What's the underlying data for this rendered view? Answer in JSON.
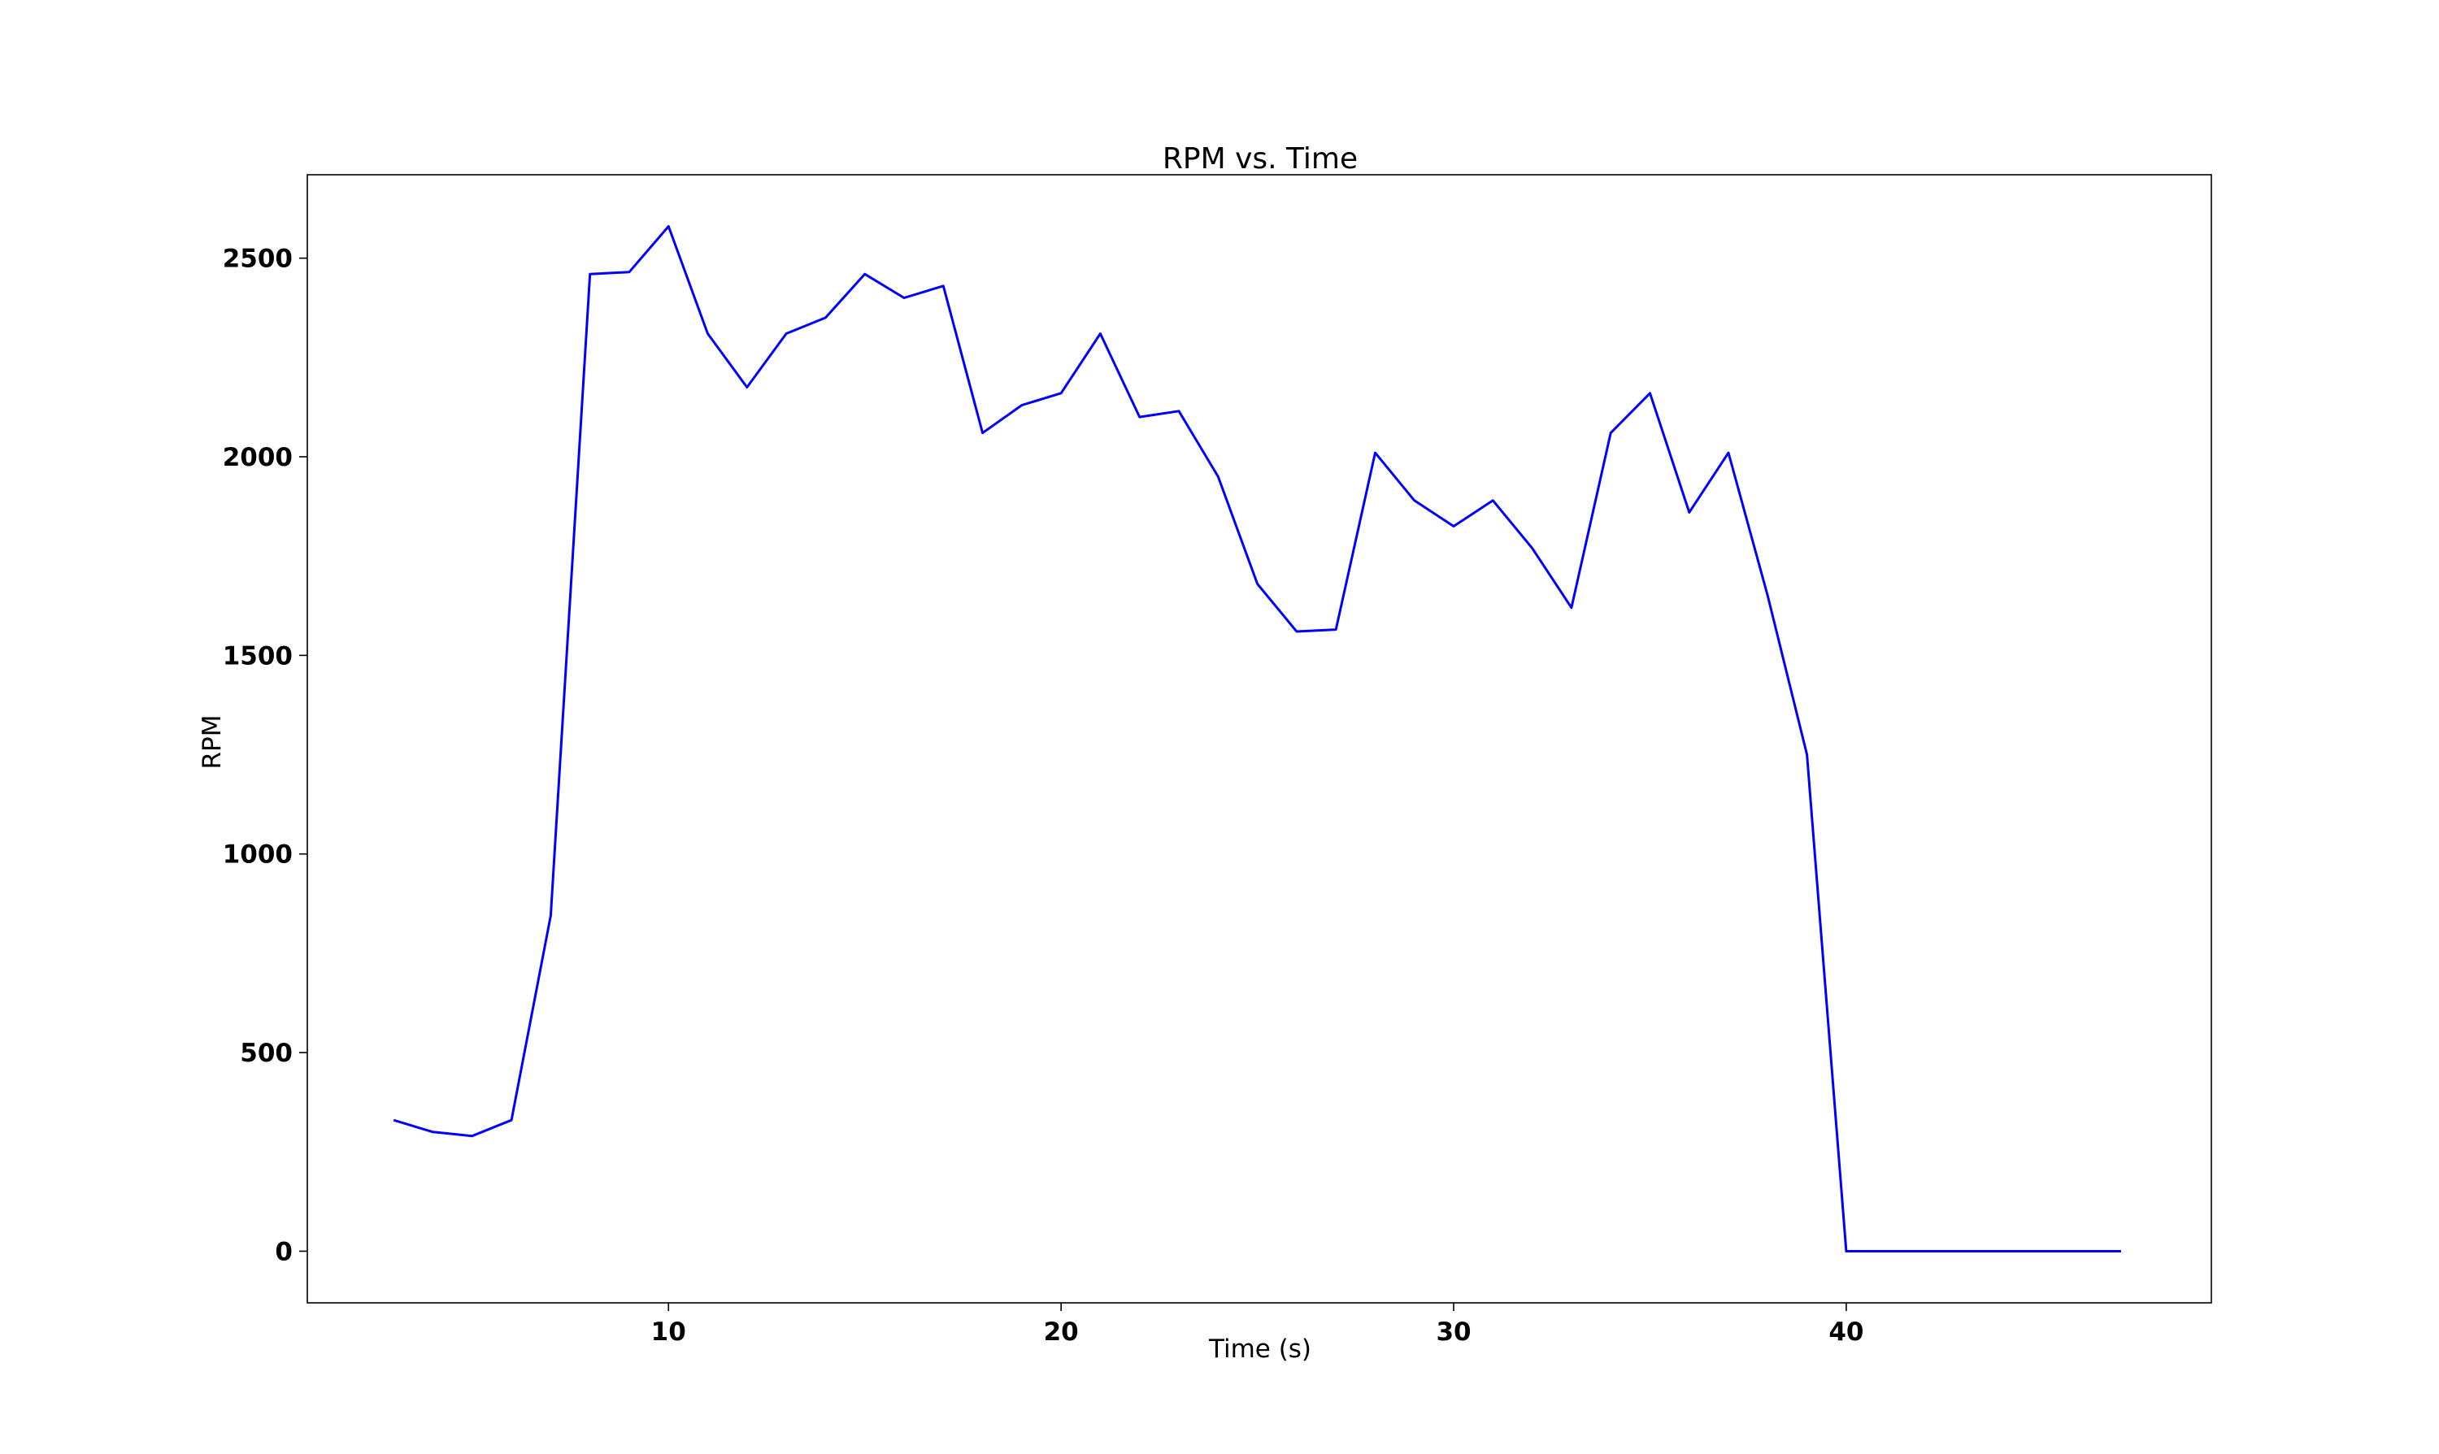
{
  "chart_data": {
    "type": "line",
    "title": "RPM vs. Time",
    "xlabel": "Time (s)",
    "ylabel": "RPM",
    "xlim": [
      0.8,
      49.3
    ],
    "ylim": [
      -130,
      2710
    ],
    "xticks": [
      10,
      20,
      30,
      40
    ],
    "yticks": [
      0,
      500,
      1000,
      1500,
      2000,
      2500
    ],
    "grid": false,
    "color": "#0000ff",
    "series": [
      {
        "x": [
          3,
          4,
          5,
          6,
          7,
          8,
          9,
          10,
          11,
          12,
          13,
          14,
          15,
          16,
          17,
          18,
          19,
          20,
          21,
          22,
          23,
          24,
          25,
          26,
          27,
          28,
          29,
          30,
          31,
          32,
          33,
          34,
          35,
          36,
          37,
          38,
          39,
          40,
          41,
          42,
          43,
          44,
          45,
          46,
          47
        ],
        "y": [
          330,
          300,
          290,
          330,
          845,
          2460,
          2465,
          2580,
          2310,
          2175,
          2310,
          2350,
          2460,
          2400,
          2430,
          2060,
          2130,
          2160,
          2310,
          2100,
          2115,
          1950,
          1680,
          1560,
          1565,
          2010,
          1890,
          1825,
          1890,
          1770,
          1620,
          2060,
          2160,
          1860,
          2010,
          1650,
          1250,
          0,
          0,
          0,
          0,
          0,
          0,
          0,
          0
        ]
      }
    ]
  }
}
